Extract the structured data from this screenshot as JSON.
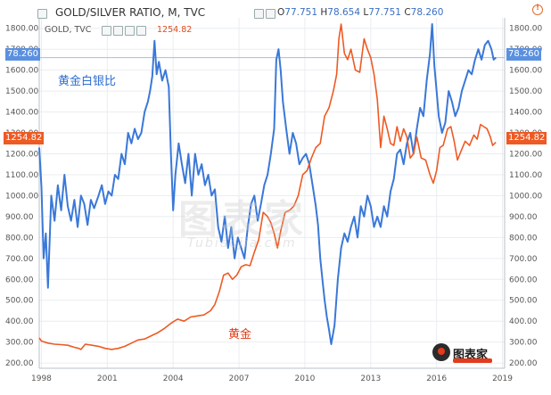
{
  "header": {
    "title": "GOLD/SILVER RATIO, M, TVC",
    "ohlc": [
      {
        "k": "O",
        "v": "77.751"
      },
      {
        "k": "H",
        "v": "78.654"
      },
      {
        "k": "L",
        "v": "77.751"
      },
      {
        "k": "C",
        "v": "78.260"
      }
    ],
    "sub_series": "GOLD, TVC",
    "sub_series_price": "1254.82"
  },
  "price_tags": {
    "ratio_left": "78.260",
    "ratio_right": "78.260",
    "gold_left": "1254.82",
    "gold_right": "1254.82"
  },
  "labels": {
    "gold_silver": "黄金白银比",
    "gold": "黄金"
  },
  "watermark": {
    "main": "图表家",
    "sub": "Tubiaojia.com"
  },
  "logo": {
    "text": "图表家"
  },
  "colors": {
    "ratio": "#3a78d8",
    "gold": "#ee5a24",
    "ratio_tag": "#5a90e0",
    "gold_tag": "#ee5a24",
    "grid": "#e9edf1"
  },
  "chart_data": {
    "type": "line",
    "ylim": [
      175,
      1850
    ],
    "yticks": [
      "200.00",
      "300.00",
      "400.00",
      "500.00",
      "600.00",
      "700.00",
      "800.00",
      "900.00",
      "1000.00",
      "1100.00",
      "1200.00",
      "1300.00",
      "1400.00",
      "1500.00",
      "1600.00",
      "1700.00",
      "1800.00"
    ],
    "xticks": [
      {
        "label": "1998",
        "x": 1998
      },
      {
        "label": "2001",
        "x": 2001
      },
      {
        "label": "2004",
        "x": 2004
      },
      {
        "label": "2007",
        "x": 2007
      },
      {
        "label": "2010",
        "x": 2010
      },
      {
        "label": "2013",
        "x": 2013
      },
      {
        "label": "2016",
        "x": 2016
      },
      {
        "label": "2019",
        "x": 2019
      }
    ],
    "xlim": [
      1997.9,
      2019.1
    ],
    "series": [
      {
        "key": "ratio",
        "points": [
          [
            1997.9,
            1230
          ],
          [
            1998.0,
            1040
          ],
          [
            1998.1,
            700
          ],
          [
            1998.2,
            820
          ],
          [
            1998.3,
            560
          ],
          [
            1998.45,
            1000
          ],
          [
            1998.6,
            880
          ],
          [
            1998.75,
            1050
          ],
          [
            1998.9,
            930
          ],
          [
            1999.05,
            1100
          ],
          [
            1999.2,
            950
          ],
          [
            1999.35,
            880
          ],
          [
            1999.5,
            980
          ],
          [
            1999.65,
            850
          ],
          [
            1999.8,
            1000
          ],
          [
            1999.95,
            960
          ],
          [
            2000.1,
            860
          ],
          [
            2000.25,
            980
          ],
          [
            2000.4,
            940
          ],
          [
            2000.6,
            1000
          ],
          [
            2000.75,
            1050
          ],
          [
            2000.9,
            960
          ],
          [
            2001.05,
            1020
          ],
          [
            2001.2,
            1000
          ],
          [
            2001.35,
            1100
          ],
          [
            2001.5,
            1080
          ],
          [
            2001.65,
            1200
          ],
          [
            2001.8,
            1150
          ],
          [
            2001.95,
            1300
          ],
          [
            2002.1,
            1250
          ],
          [
            2002.25,
            1320
          ],
          [
            2002.4,
            1270
          ],
          [
            2002.55,
            1300
          ],
          [
            2002.7,
            1400
          ],
          [
            2002.85,
            1450
          ],
          [
            2002.95,
            1500
          ],
          [
            2003.05,
            1570
          ],
          [
            2003.15,
            1740
          ],
          [
            2003.25,
            1580
          ],
          [
            2003.35,
            1640
          ],
          [
            2003.5,
            1550
          ],
          [
            2003.65,
            1600
          ],
          [
            2003.8,
            1520
          ],
          [
            2003.9,
            1200
          ],
          [
            2004.0,
            930
          ],
          [
            2004.1,
            1100
          ],
          [
            2004.25,
            1250
          ],
          [
            2004.4,
            1150
          ],
          [
            2004.55,
            1060
          ],
          [
            2004.7,
            1200
          ],
          [
            2004.85,
            1000
          ],
          [
            2005.0,
            1200
          ],
          [
            2005.15,
            1100
          ],
          [
            2005.3,
            1150
          ],
          [
            2005.45,
            1050
          ],
          [
            2005.6,
            1100
          ],
          [
            2005.75,
            1000
          ],
          [
            2005.9,
            1030
          ],
          [
            2006.05,
            850
          ],
          [
            2006.2,
            780
          ],
          [
            2006.35,
            900
          ],
          [
            2006.5,
            750
          ],
          [
            2006.65,
            850
          ],
          [
            2006.8,
            700
          ],
          [
            2006.95,
            800
          ],
          [
            2007.1,
            750
          ],
          [
            2007.25,
            700
          ],
          [
            2007.4,
            850
          ],
          [
            2007.55,
            960
          ],
          [
            2007.7,
            1000
          ],
          [
            2007.85,
            880
          ],
          [
            2008.0,
            960
          ],
          [
            2008.15,
            1050
          ],
          [
            2008.3,
            1100
          ],
          [
            2008.45,
            1200
          ],
          [
            2008.6,
            1320
          ],
          [
            2008.7,
            1650
          ],
          [
            2008.8,
            1700
          ],
          [
            2008.9,
            1600
          ],
          [
            2009.0,
            1450
          ],
          [
            2009.15,
            1320
          ],
          [
            2009.3,
            1200
          ],
          [
            2009.45,
            1300
          ],
          [
            2009.6,
            1250
          ],
          [
            2009.75,
            1150
          ],
          [
            2009.9,
            1180
          ],
          [
            2010.05,
            1200
          ],
          [
            2010.2,
            1150
          ],
          [
            2010.35,
            1050
          ],
          [
            2010.5,
            950
          ],
          [
            2010.6,
            860
          ],
          [
            2010.7,
            700
          ],
          [
            2010.8,
            600
          ],
          [
            2010.9,
            500
          ],
          [
            2011.0,
            420
          ],
          [
            2011.1,
            360
          ],
          [
            2011.2,
            290
          ],
          [
            2011.35,
            380
          ],
          [
            2011.5,
            600
          ],
          [
            2011.65,
            750
          ],
          [
            2011.8,
            820
          ],
          [
            2011.95,
            780
          ],
          [
            2012.1,
            850
          ],
          [
            2012.25,
            900
          ],
          [
            2012.4,
            800
          ],
          [
            2012.55,
            950
          ],
          [
            2012.7,
            900
          ],
          [
            2012.85,
            1000
          ],
          [
            2013.0,
            950
          ],
          [
            2013.15,
            850
          ],
          [
            2013.3,
            900
          ],
          [
            2013.45,
            850
          ],
          [
            2013.6,
            950
          ],
          [
            2013.75,
            900
          ],
          [
            2013.9,
            1020
          ],
          [
            2014.05,
            1080
          ],
          [
            2014.2,
            1200
          ],
          [
            2014.35,
            1220
          ],
          [
            2014.5,
            1150
          ],
          [
            2014.65,
            1250
          ],
          [
            2014.8,
            1300
          ],
          [
            2014.95,
            1200
          ],
          [
            2015.1,
            1320
          ],
          [
            2015.25,
            1420
          ],
          [
            2015.4,
            1380
          ],
          [
            2015.55,
            1550
          ],
          [
            2015.7,
            1680
          ],
          [
            2015.8,
            1820
          ],
          [
            2015.9,
            1620
          ],
          [
            2016.0,
            1500
          ],
          [
            2016.1,
            1380
          ],
          [
            2016.25,
            1300
          ],
          [
            2016.4,
            1350
          ],
          [
            2016.55,
            1500
          ],
          [
            2016.7,
            1450
          ],
          [
            2016.85,
            1380
          ],
          [
            2017.0,
            1420
          ],
          [
            2017.15,
            1500
          ],
          [
            2017.3,
            1550
          ],
          [
            2017.45,
            1600
          ],
          [
            2017.6,
            1580
          ],
          [
            2017.75,
            1650
          ],
          [
            2017.9,
            1700
          ],
          [
            2018.05,
            1650
          ],
          [
            2018.2,
            1720
          ],
          [
            2018.35,
            1740
          ],
          [
            2018.5,
            1700
          ],
          [
            2018.6,
            1650
          ],
          [
            2018.7,
            1660
          ]
        ]
      },
      {
        "key": "gold",
        "points": [
          [
            1997.9,
            320
          ],
          [
            1998.0,
            305
          ],
          [
            1998.3,
            295
          ],
          [
            1998.6,
            290
          ],
          [
            1998.9,
            288
          ],
          [
            1999.2,
            285
          ],
          [
            1999.5,
            275
          ],
          [
            1999.7,
            270
          ],
          [
            1999.8,
            265
          ],
          [
            2000.0,
            290
          ],
          [
            2000.3,
            285
          ],
          [
            2000.6,
            280
          ],
          [
            2000.9,
            270
          ],
          [
            2001.2,
            265
          ],
          [
            2001.5,
            270
          ],
          [
            2001.8,
            280
          ],
          [
            2002.1,
            295
          ],
          [
            2002.4,
            310
          ],
          [
            2002.7,
            315
          ],
          [
            2003.0,
            330
          ],
          [
            2003.3,
            345
          ],
          [
            2003.6,
            365
          ],
          [
            2003.9,
            390
          ],
          [
            2004.2,
            410
          ],
          [
            2004.5,
            400
          ],
          [
            2004.8,
            420
          ],
          [
            2005.1,
            425
          ],
          [
            2005.4,
            430
          ],
          [
            2005.7,
            450
          ],
          [
            2005.9,
            480
          ],
          [
            2006.1,
            540
          ],
          [
            2006.3,
            620
          ],
          [
            2006.5,
            630
          ],
          [
            2006.7,
            600
          ],
          [
            2006.9,
            620
          ],
          [
            2007.1,
            660
          ],
          [
            2007.3,
            670
          ],
          [
            2007.5,
            665
          ],
          [
            2007.7,
            730
          ],
          [
            2007.9,
            790
          ],
          [
            2008.1,
            920
          ],
          [
            2008.3,
            900
          ],
          [
            2008.45,
            870
          ],
          [
            2008.6,
            820
          ],
          [
            2008.75,
            750
          ],
          [
            2008.9,
            830
          ],
          [
            2009.1,
            920
          ],
          [
            2009.3,
            930
          ],
          [
            2009.5,
            950
          ],
          [
            2009.7,
            1000
          ],
          [
            2009.9,
            1100
          ],
          [
            2010.1,
            1120
          ],
          [
            2010.3,
            1180
          ],
          [
            2010.5,
            1230
          ],
          [
            2010.7,
            1250
          ],
          [
            2010.9,
            1380
          ],
          [
            2011.1,
            1420
          ],
          [
            2011.3,
            1500
          ],
          [
            2011.45,
            1580
          ],
          [
            2011.55,
            1750
          ],
          [
            2011.65,
            1820
          ],
          [
            2011.8,
            1680
          ],
          [
            2011.95,
            1650
          ],
          [
            2012.1,
            1700
          ],
          [
            2012.3,
            1600
          ],
          [
            2012.5,
            1590
          ],
          [
            2012.7,
            1750
          ],
          [
            2012.85,
            1700
          ],
          [
            2013.0,
            1660
          ],
          [
            2013.15,
            1580
          ],
          [
            2013.3,
            1460
          ],
          [
            2013.45,
            1230
          ],
          [
            2013.6,
            1380
          ],
          [
            2013.75,
            1320
          ],
          [
            2013.9,
            1250
          ],
          [
            2014.05,
            1240
          ],
          [
            2014.2,
            1330
          ],
          [
            2014.35,
            1260
          ],
          [
            2014.5,
            1320
          ],
          [
            2014.65,
            1280
          ],
          [
            2014.8,
            1180
          ],
          [
            2014.95,
            1200
          ],
          [
            2015.1,
            1280
          ],
          [
            2015.3,
            1180
          ],
          [
            2015.5,
            1170
          ],
          [
            2015.7,
            1100
          ],
          [
            2015.85,
            1060
          ],
          [
            2016.0,
            1120
          ],
          [
            2016.15,
            1230
          ],
          [
            2016.3,
            1240
          ],
          [
            2016.5,
            1320
          ],
          [
            2016.65,
            1330
          ],
          [
            2016.8,
            1260
          ],
          [
            2016.95,
            1170
          ],
          [
            2017.1,
            1210
          ],
          [
            2017.3,
            1260
          ],
          [
            2017.5,
            1240
          ],
          [
            2017.7,
            1290
          ],
          [
            2017.85,
            1270
          ],
          [
            2018.0,
            1340
          ],
          [
            2018.15,
            1330
          ],
          [
            2018.3,
            1320
          ],
          [
            2018.45,
            1280
          ],
          [
            2018.55,
            1240
          ],
          [
            2018.7,
            1255
          ]
        ]
      }
    ]
  }
}
